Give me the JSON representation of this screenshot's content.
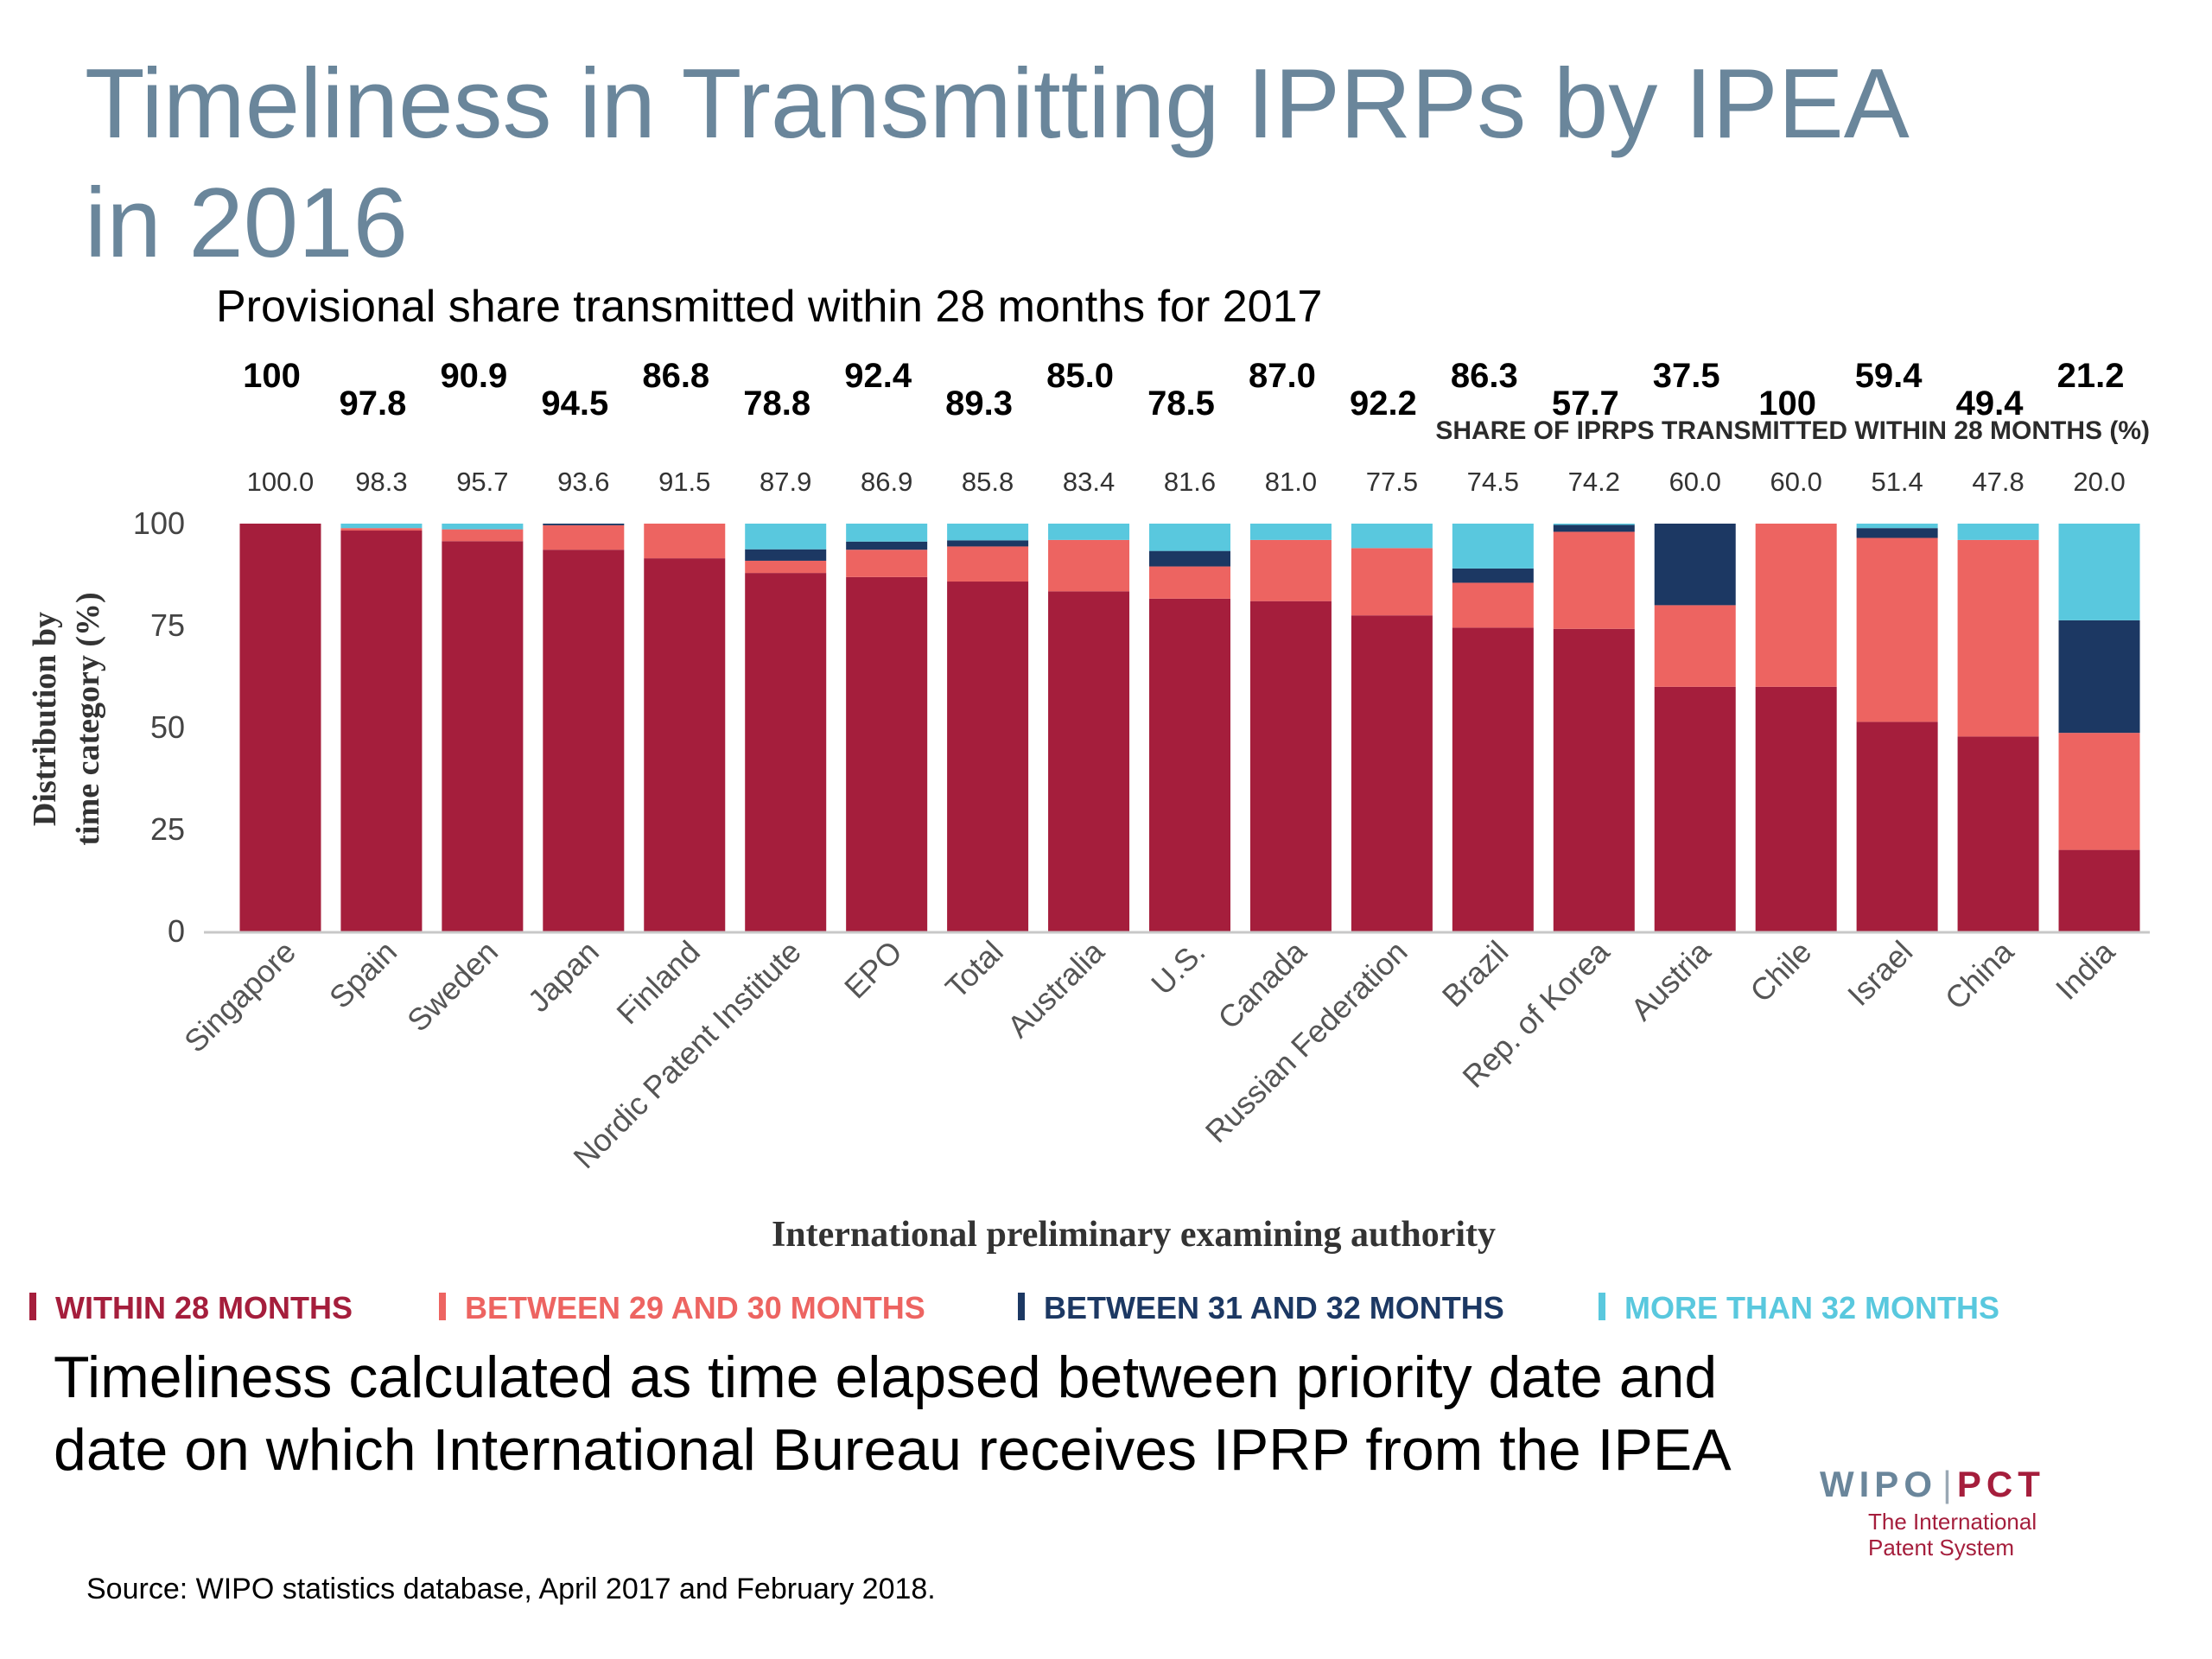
{
  "slide": {
    "title_line1": "Timeliness in Transmitting IPRPs by IPEA",
    "title_line2": "in 2016",
    "provisional_caption": "Provisional share transmitted within 28 months for 2017",
    "footnote_line1": "Timeliness calculated as time elapsed between priority date and",
    "footnote_line2": "date on which International Bureau receives IPRP from the IPEA",
    "source": "Source: WIPO statistics database, April  2017 and February  2018.",
    "logo": {
      "wipo": "WIPO",
      "pct": "PCT",
      "tagline1": "The International",
      "tagline2": "Patent System"
    }
  },
  "chart_data": {
    "type": "bar",
    "stacked": true,
    "title": "",
    "xlabel": "International preliminary examining authority",
    "ylabel_line1": "Distribution by",
    "ylabel_line2": "time category (%)",
    "ylim": [
      0,
      100
    ],
    "yticks": [
      0,
      25,
      50,
      75,
      100
    ],
    "share_header": "SHARE OF IPRPS TRANSMITTED WITHIN 28 MONTHS (%)",
    "categories": [
      "Singapore",
      "Spain",
      "Sweden",
      "Japan",
      "Finland",
      "Nordic Patent Institute",
      "EPO",
      "Total",
      "Australia",
      "U.S.",
      "Canada",
      "Russian Federation",
      "Brazil",
      "Rep. of Korea",
      "Austria",
      "Chile",
      "Israel",
      "China",
      "India"
    ],
    "share_within_28_months_labels": [
      "100.0",
      "98.3",
      "95.7",
      "93.6",
      "91.5",
      "87.9",
      "86.9",
      "85.8",
      "83.4",
      "81.6",
      "81.0",
      "77.5",
      "74.5",
      "74.2",
      "60.0",
      "60.0",
      "51.4",
      "47.8",
      "20.0"
    ],
    "provisional_2017_labels": [
      "100",
      "97.8",
      "90.9",
      "94.5",
      "86.8",
      "78.8",
      "92.4",
      "89.3",
      "85.0",
      "78.5",
      "87.0",
      "92.2",
      "86.3",
      "57.7",
      "37.5",
      "100",
      "59.4",
      "49.4",
      "21.2"
    ],
    "series": [
      {
        "name": "WITHIN 28 MONTHS",
        "color": "#a51e3c",
        "values": [
          100.0,
          98.3,
          95.7,
          93.6,
          91.5,
          87.9,
          86.9,
          85.8,
          83.4,
          81.6,
          81.0,
          77.5,
          74.5,
          74.2,
          60.0,
          60.0,
          51.4,
          47.8,
          20.0
        ]
      },
      {
        "name": "BETWEEN 29 AND 30 MONTHS",
        "color": "#ed6461",
        "values": [
          0,
          0.6,
          2.9,
          6.0,
          8.5,
          3.0,
          6.7,
          8.6,
          12.6,
          7.9,
          15.0,
          16.5,
          11.0,
          23.8,
          20.0,
          40.0,
          45.1,
          48.2,
          28.7
        ]
      },
      {
        "name": "BETWEEN 31 AND 32 MONTHS",
        "color": "#1c3863",
        "values": [
          0,
          0,
          0,
          0.4,
          0,
          2.8,
          2.0,
          1.5,
          0,
          3.8,
          0,
          0,
          3.5,
          1.7,
          20.0,
          0,
          2.4,
          0,
          27.6
        ]
      },
      {
        "name": "MORE THAN 32 MONTHS",
        "color": "#59c8de",
        "values": [
          0,
          1.1,
          1.4,
          0,
          0,
          6.3,
          4.4,
          4.1,
          4.0,
          6.7,
          4.0,
          6.0,
          11.0,
          0.3,
          0,
          0,
          1.1,
          4.0,
          23.7
        ]
      }
    ],
    "legend_position": "bottom",
    "grid": false
  }
}
